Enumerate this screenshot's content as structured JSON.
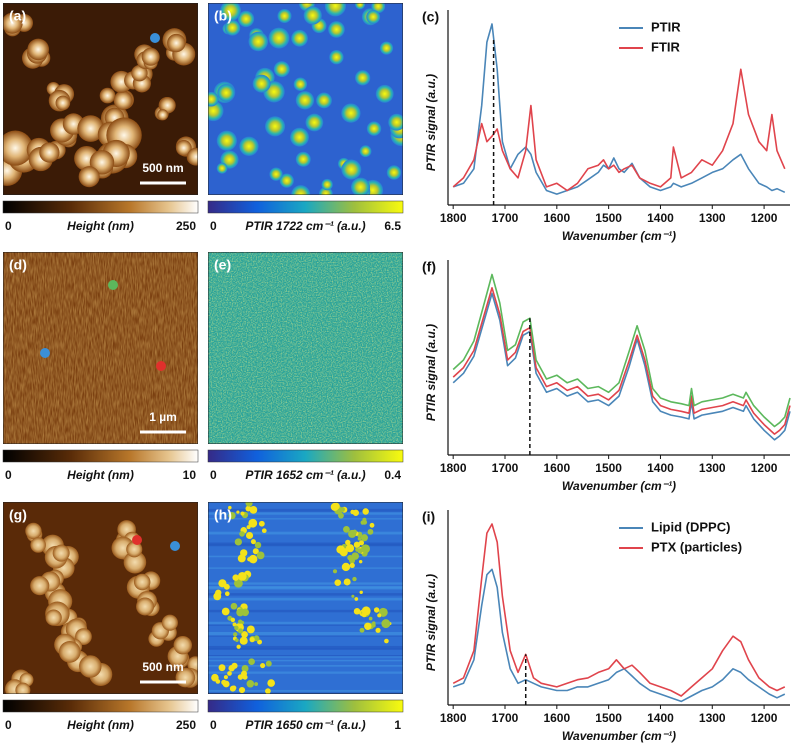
{
  "image_panels": [
    {
      "label": "(a)",
      "colorbar_label": "Height (nm)",
      "range": [
        0,
        250
      ],
      "scale_bar": "500 nm"
    },
    {
      "label": "(b)",
      "colorbar_label": "PTIR 1722 cm⁻¹ (a.u.)",
      "range": [
        0,
        6.5
      ]
    },
    {
      "label": "(d)",
      "colorbar_label": "Height (nm)",
      "range": [
        0,
        10
      ],
      "scale_bar": "1 µm"
    },
    {
      "label": "(e)",
      "colorbar_label": "PTIR 1652 cm⁻¹ (a.u.)",
      "range": [
        0,
        0.4
      ]
    },
    {
      "label": "(g)",
      "colorbar_label": "Height (nm)",
      "range": [
        0,
        250
      ],
      "scale_bar": "500 nm"
    },
    {
      "label": "(h)",
      "colorbar_label": "PTIR 1650 cm⁻¹ (a.u.)",
      "range": [
        0,
        1
      ]
    }
  ],
  "chart_data": [
    {
      "type": "line",
      "label": "(c)",
      "xlabel": "Wavenumber (cm⁻¹)",
      "ylabel": "PTIR signal (a.u.)",
      "xlim": [
        1810,
        1150
      ],
      "xticks": [
        1800,
        1700,
        1600,
        1500,
        1400,
        1300,
        1200
      ],
      "ylim": [
        0,
        1.05
      ],
      "vline": 1722,
      "legend": "upper right",
      "x": [
        1800,
        1780,
        1760,
        1745,
        1735,
        1725,
        1715,
        1705,
        1690,
        1675,
        1660,
        1650,
        1640,
        1620,
        1600,
        1580,
        1560,
        1540,
        1520,
        1510,
        1500,
        1490,
        1480,
        1470,
        1455,
        1440,
        1420,
        1400,
        1380,
        1375,
        1360,
        1340,
        1320,
        1300,
        1280,
        1260,
        1245,
        1230,
        1210,
        1195,
        1185,
        1175,
        1160
      ],
      "series": [
        {
          "name": "PTIR",
          "color": "#4a86b8",
          "values": [
            0.1,
            0.12,
            0.2,
            0.55,
            0.9,
            1,
            0.75,
            0.35,
            0.2,
            0.28,
            0.32,
            0.28,
            0.18,
            0.08,
            0.06,
            0.08,
            0.1,
            0.14,
            0.18,
            0.22,
            0.2,
            0.26,
            0.2,
            0.18,
            0.23,
            0.15,
            0.1,
            0.08,
            0.1,
            0.12,
            0.1,
            0.12,
            0.15,
            0.18,
            0.2,
            0.25,
            0.28,
            0.2,
            0.12,
            0.1,
            0.08,
            0.09,
            0.07
          ]
        },
        {
          "name": "FTIR",
          "color": "#e0444c",
          "values": [
            0.1,
            0.15,
            0.25,
            0.45,
            0.35,
            0.38,
            0.42,
            0.3,
            0.2,
            0.15,
            0.3,
            0.55,
            0.25,
            0.1,
            0.12,
            0.08,
            0.12,
            0.2,
            0.22,
            0.25,
            0.2,
            0.22,
            0.18,
            0.2,
            0.22,
            0.15,
            0.12,
            0.1,
            0.15,
            0.32,
            0.15,
            0.18,
            0.25,
            0.22,
            0.3,
            0.45,
            0.75,
            0.5,
            0.35,
            0.3,
            0.5,
            0.3,
            0.2
          ]
        }
      ]
    },
    {
      "type": "line",
      "label": "(f)",
      "xlabel": "Wavenumber (cm⁻¹)",
      "ylabel": "PTIR signal (a.u.)",
      "xlim": [
        1810,
        1150
      ],
      "xticks": [
        1800,
        1700,
        1600,
        1500,
        1400,
        1300,
        1200
      ],
      "ylim": [
        0,
        1
      ],
      "vline": 1652,
      "x": [
        1800,
        1780,
        1760,
        1740,
        1725,
        1710,
        1695,
        1680,
        1665,
        1652,
        1640,
        1620,
        1600,
        1580,
        1560,
        1540,
        1520,
        1500,
        1480,
        1460,
        1445,
        1430,
        1415,
        1400,
        1380,
        1360,
        1345,
        1340,
        1335,
        1320,
        1300,
        1280,
        1260,
        1240,
        1235,
        1220,
        1200,
        1180,
        1170,
        1160,
        1150
      ],
      "series": [
        {
          "color": "#4a86b8",
          "values": [
            0.38,
            0.43,
            0.52,
            0.71,
            0.85,
            0.71,
            0.47,
            0.51,
            0.63,
            0.65,
            0.43,
            0.33,
            0.35,
            0.31,
            0.33,
            0.28,
            0.29,
            0.26,
            0.31,
            0.47,
            0.61,
            0.47,
            0.28,
            0.23,
            0.21,
            0.2,
            0.19,
            0.28,
            0.19,
            0.21,
            0.22,
            0.23,
            0.25,
            0.23,
            0.26,
            0.19,
            0.13,
            0.08,
            0.1,
            0.13,
            0.23
          ]
        },
        {
          "color": "#e0444c",
          "values": [
            0.41,
            0.46,
            0.55,
            0.74,
            0.88,
            0.74,
            0.5,
            0.54,
            0.65,
            0.67,
            0.46,
            0.36,
            0.38,
            0.34,
            0.36,
            0.31,
            0.32,
            0.29,
            0.34,
            0.5,
            0.63,
            0.5,
            0.31,
            0.26,
            0.24,
            0.23,
            0.22,
            0.31,
            0.22,
            0.24,
            0.25,
            0.26,
            0.28,
            0.26,
            0.29,
            0.22,
            0.16,
            0.11,
            0.13,
            0.16,
            0.26
          ]
        },
        {
          "color": "#5cb85c",
          "values": [
            0.45,
            0.5,
            0.6,
            0.8,
            0.95,
            0.8,
            0.55,
            0.58,
            0.7,
            0.72,
            0.5,
            0.4,
            0.42,
            0.38,
            0.4,
            0.35,
            0.36,
            0.33,
            0.38,
            0.55,
            0.68,
            0.55,
            0.35,
            0.3,
            0.28,
            0.27,
            0.26,
            0.35,
            0.26,
            0.28,
            0.29,
            0.3,
            0.32,
            0.3,
            0.33,
            0.26,
            0.2,
            0.15,
            0.17,
            0.2,
            0.3
          ]
        }
      ]
    },
    {
      "type": "line",
      "label": "(i)",
      "xlabel": "Wavenumber (cm⁻¹)",
      "ylabel": "PTIR signal (a.u.)",
      "xlim": [
        1810,
        1150
      ],
      "xticks": [
        1800,
        1700,
        1600,
        1500,
        1400,
        1300,
        1200
      ],
      "ylim": [
        0,
        1.05
      ],
      "vline": 1660,
      "legend": "upper right",
      "x": [
        1800,
        1780,
        1760,
        1745,
        1735,
        1725,
        1715,
        1705,
        1690,
        1675,
        1660,
        1645,
        1630,
        1600,
        1580,
        1560,
        1540,
        1520,
        1500,
        1485,
        1470,
        1455,
        1440,
        1420,
        1400,
        1380,
        1360,
        1340,
        1320,
        1300,
        1280,
        1260,
        1245,
        1230,
        1210,
        1190,
        1175,
        1160
      ],
      "series": [
        {
          "name": "Lipid (DPPC)",
          "color": "#4a86b8",
          "values": [
            0.1,
            0.12,
            0.25,
            0.55,
            0.72,
            0.75,
            0.65,
            0.4,
            0.2,
            0.12,
            0.14,
            0.12,
            0.1,
            0.08,
            0.08,
            0.1,
            0.1,
            0.12,
            0.14,
            0.18,
            0.2,
            0.16,
            0.12,
            0.08,
            0.06,
            0.04,
            0.02,
            0.05,
            0.08,
            0.1,
            0.14,
            0.2,
            0.18,
            0.14,
            0.1,
            0.06,
            0.04,
            0.06
          ]
        },
        {
          "name": "PTX (particles)",
          "color": "#e0444c",
          "values": [
            0.12,
            0.15,
            0.3,
            0.7,
            0.95,
            1,
            0.9,
            0.6,
            0.3,
            0.18,
            0.28,
            0.15,
            0.12,
            0.1,
            0.12,
            0.14,
            0.15,
            0.18,
            0.2,
            0.25,
            0.2,
            0.22,
            0.18,
            0.12,
            0.1,
            0.08,
            0.05,
            0.1,
            0.15,
            0.2,
            0.3,
            0.38,
            0.35,
            0.25,
            0.15,
            0.1,
            0.08,
            0.1
          ]
        }
      ]
    }
  ]
}
